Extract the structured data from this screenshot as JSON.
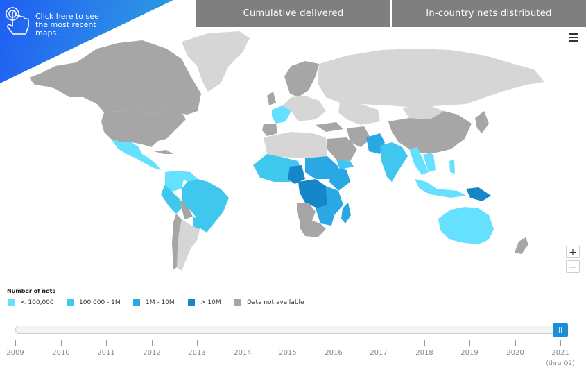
{
  "callout": {
    "text": "Click here to see the most recent maps.",
    "icon": "hand-pointer-icon"
  },
  "tabs": [
    {
      "label": "Cumulative delivered"
    },
    {
      "label": "In-country nets distributed"
    }
  ],
  "menu_icon": "hamburger-menu-icon",
  "zoom": {
    "in_label": "+",
    "out_label": "−"
  },
  "legend": {
    "title": "Number of nets",
    "items": [
      {
        "label": "< 100,000",
        "color": "#66e0ff"
      },
      {
        "label": "100,000 - 1M",
        "color": "#3fc7ee"
      },
      {
        "label": "1M - 10M",
        "color": "#2aa8e4"
      },
      {
        "label": "> 10M",
        "color": "#1786c8"
      },
      {
        "label": "Data not available",
        "color": "#a6a6a6"
      }
    ]
  },
  "map_colors": {
    "no_data_dark": "#a6a6a6",
    "no_data_light": "#d6d6d6",
    "lt_100k": "#66e0ff",
    "k100_1m": "#3fc7ee",
    "m1_10m": "#2aa8e4",
    "gt_10m": "#1786c8"
  },
  "timeline": {
    "years": [
      "2009",
      "2010",
      "2011",
      "2012",
      "2013",
      "2014",
      "2015",
      "2016",
      "2017",
      "2018",
      "2019",
      "2020",
      "2021"
    ],
    "last_sublabel": "(thru Q2)",
    "selected_year": "2021",
    "handle_glyph": "||"
  }
}
